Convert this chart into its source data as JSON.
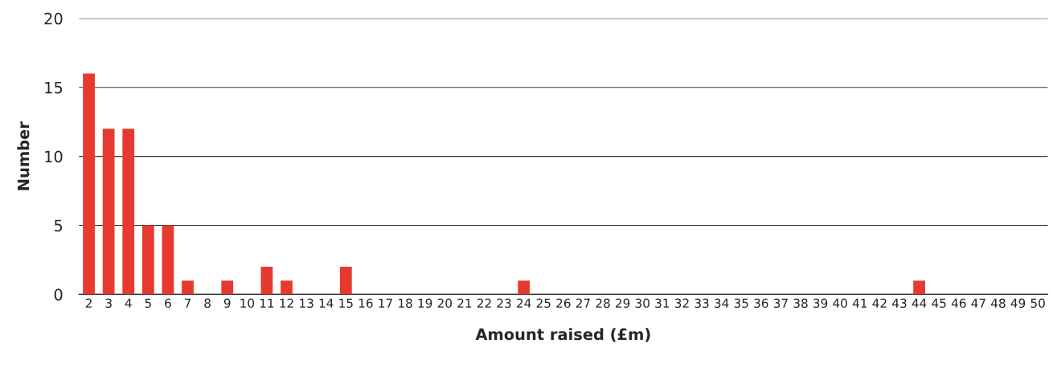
{
  "chart_data": {
    "type": "bar",
    "xlabel": "Amount raised (£m)",
    "ylabel": "Number",
    "categories": [
      "2",
      "3",
      "4",
      "5",
      "6",
      "7",
      "8",
      "9",
      "10",
      "11",
      "12",
      "13",
      "14",
      "15",
      "16",
      "17",
      "18",
      "19",
      "20",
      "21",
      "22",
      "23",
      "24",
      "25",
      "26",
      "27",
      "28",
      "29",
      "30",
      "31",
      "32",
      "33",
      "34",
      "35",
      "36",
      "37",
      "38",
      "39",
      "40",
      "41",
      "42",
      "43",
      "44",
      "45",
      "46",
      "47",
      "48",
      "49",
      "50"
    ],
    "values": [
      16,
      12,
      12,
      5,
      5,
      1,
      0,
      1,
      0,
      2,
      1,
      0,
      0,
      2,
      0,
      0,
      0,
      0,
      0,
      0,
      0,
      0,
      1,
      0,
      0,
      0,
      0,
      0,
      0,
      0,
      0,
      0,
      0,
      0,
      0,
      0,
      0,
      0,
      0,
      0,
      0,
      0,
      1,
      0,
      0,
      0,
      0,
      0,
      0
    ],
    "color": "#e63a30",
    "ylim": [
      0,
      20
    ],
    "yticks": [
      0,
      5,
      10,
      15,
      20
    ],
    "grid": "y"
  }
}
